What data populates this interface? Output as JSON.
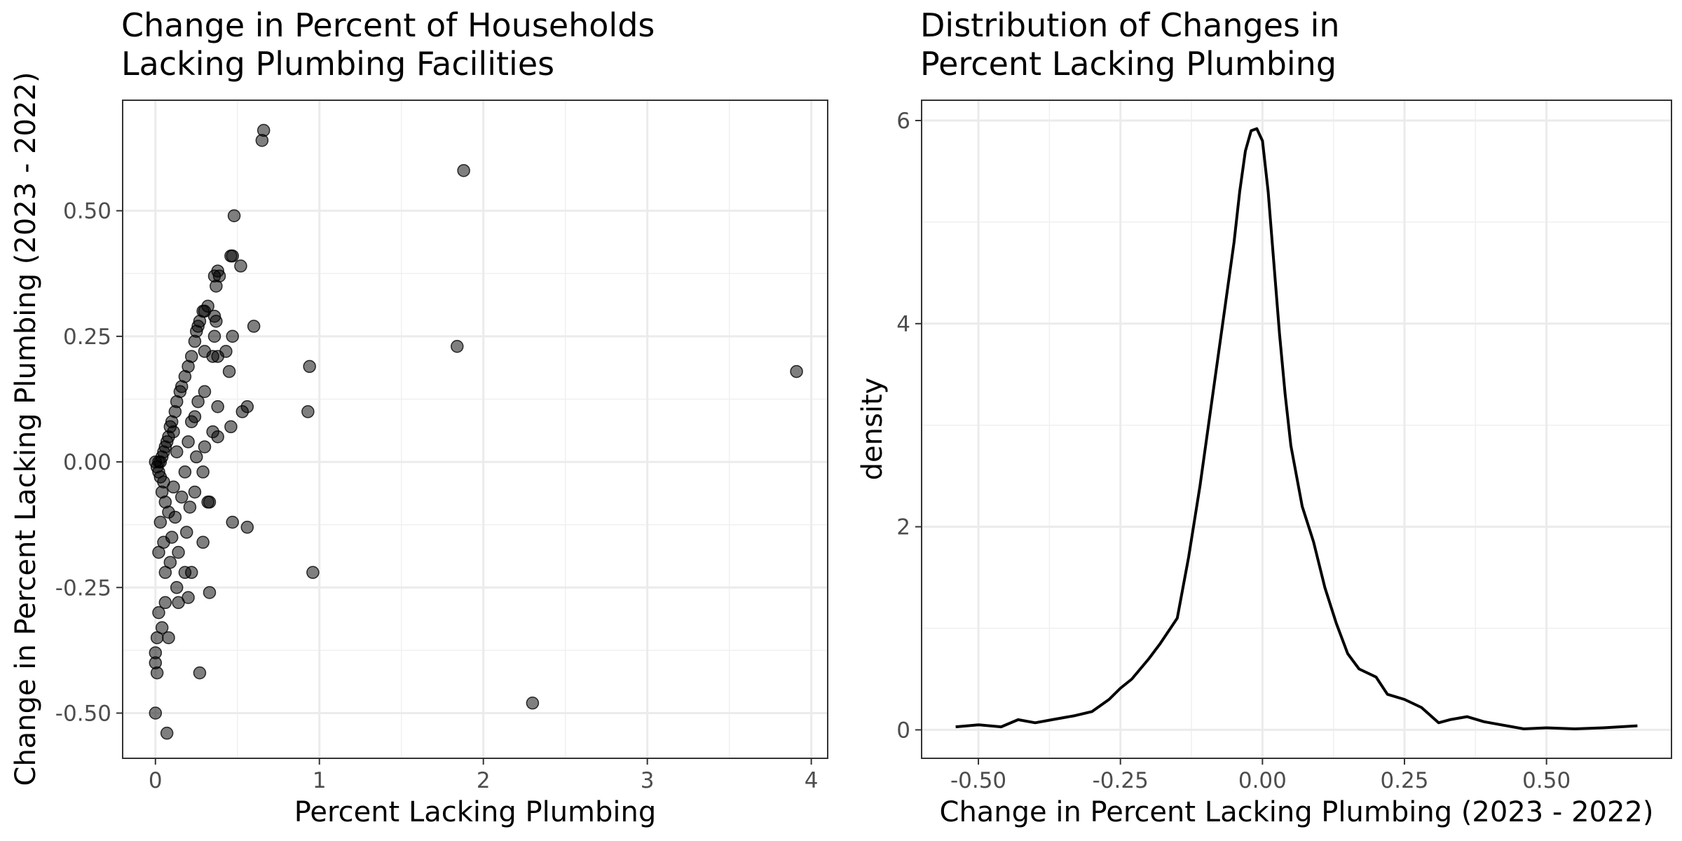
{
  "chart_data": [
    {
      "type": "scatter",
      "title": [
        "Change in Percent of Households",
        "Lacking Plumbing Facilities"
      ],
      "xlabel": "Percent Lacking Plumbing",
      "ylabel": "Change in Percent Lacking Plumbing (2023 - 2022)",
      "xlim": [
        -0.2,
        4.1
      ],
      "ylim": [
        -0.59,
        0.72
      ],
      "grid": true,
      "x_ticks": [
        0,
        1,
        2,
        3,
        4
      ],
      "x_tick_labels": [
        "0",
        "1",
        "2",
        "3",
        "4"
      ],
      "y_ticks": [
        -0.5,
        -0.25,
        0,
        0.25,
        0.5
      ],
      "y_tick_labels": [
        "-0.50",
        "-0.25",
        "0.00",
        "0.25",
        "0.50"
      ],
      "point_color": "#000000",
      "point_opacity": 0.5,
      "points": [
        [
          0.66,
          0.66
        ],
        [
          0.65,
          0.64
        ],
        [
          1.88,
          0.58
        ],
        [
          0.48,
          0.49
        ],
        [
          0.46,
          0.41
        ],
        [
          0.47,
          0.41
        ],
        [
          0.52,
          0.39
        ],
        [
          0.38,
          0.38
        ],
        [
          0.36,
          0.37
        ],
        [
          0.39,
          0.37
        ],
        [
          0.37,
          0.35
        ],
        [
          0.3,
          0.3
        ],
        [
          0.32,
          0.31
        ],
        [
          0.29,
          0.3
        ],
        [
          0.27,
          0.28
        ],
        [
          0.6,
          0.27
        ],
        [
          0.36,
          0.29
        ],
        [
          0.37,
          0.28
        ],
        [
          0.26,
          0.27
        ],
        [
          0.25,
          0.26
        ],
        [
          0.47,
          0.25
        ],
        [
          0.36,
          0.25
        ],
        [
          0.24,
          0.24
        ],
        [
          1.84,
          0.23
        ],
        [
          0.43,
          0.22
        ],
        [
          0.3,
          0.22
        ],
        [
          0.38,
          0.21
        ],
        [
          0.35,
          0.21
        ],
        [
          0.22,
          0.21
        ],
        [
          0.2,
          0.19
        ],
        [
          0.94,
          0.19
        ],
        [
          3.91,
          0.18
        ],
        [
          0.45,
          0.18
        ],
        [
          0.18,
          0.17
        ],
        [
          0.16,
          0.15
        ],
        [
          0.15,
          0.14
        ],
        [
          0.3,
          0.14
        ],
        [
          0.26,
          0.12
        ],
        [
          0.38,
          0.11
        ],
        [
          0.56,
          0.11
        ],
        [
          0.93,
          0.1
        ],
        [
          0.53,
          0.1
        ],
        [
          0.13,
          0.12
        ],
        [
          0.12,
          0.1
        ],
        [
          0.24,
          0.09
        ],
        [
          0.22,
          0.08
        ],
        [
          0.46,
          0.07
        ],
        [
          0.35,
          0.06
        ],
        [
          0.1,
          0.08
        ],
        [
          0.09,
          0.07
        ],
        [
          0.11,
          0.06
        ],
        [
          0.38,
          0.05
        ],
        [
          0.2,
          0.04
        ],
        [
          0.08,
          0.05
        ],
        [
          0.07,
          0.04
        ],
        [
          0.3,
          0.03
        ],
        [
          0.06,
          0.03
        ],
        [
          0.13,
          0.02
        ],
        [
          0.25,
          0.01
        ],
        [
          0.05,
          0.02
        ],
        [
          0.04,
          0.01
        ],
        [
          0.03,
          0.0
        ],
        [
          0.02,
          0.0
        ],
        [
          0.01,
          -0.01
        ],
        [
          0.0,
          0.0
        ],
        [
          0.02,
          -0.02
        ],
        [
          0.18,
          -0.02
        ],
        [
          0.29,
          -0.02
        ],
        [
          0.03,
          -0.03
        ],
        [
          0.05,
          -0.04
        ],
        [
          0.11,
          -0.05
        ],
        [
          0.24,
          -0.06
        ],
        [
          0.04,
          -0.06
        ],
        [
          0.16,
          -0.07
        ],
        [
          0.32,
          -0.08
        ],
        [
          0.33,
          -0.08
        ],
        [
          0.06,
          -0.08
        ],
        [
          0.21,
          -0.09
        ],
        [
          0.08,
          -0.1
        ],
        [
          0.12,
          -0.11
        ],
        [
          0.47,
          -0.12
        ],
        [
          0.56,
          -0.13
        ],
        [
          0.03,
          -0.12
        ],
        [
          0.19,
          -0.14
        ],
        [
          0.1,
          -0.15
        ],
        [
          0.29,
          -0.16
        ],
        [
          0.05,
          -0.16
        ],
        [
          0.14,
          -0.18
        ],
        [
          0.02,
          -0.18
        ],
        [
          0.09,
          -0.2
        ],
        [
          0.96,
          -0.22
        ],
        [
          0.22,
          -0.22
        ],
        [
          0.18,
          -0.22
        ],
        [
          0.06,
          -0.22
        ],
        [
          0.13,
          -0.25
        ],
        [
          0.33,
          -0.26
        ],
        [
          0.2,
          -0.27
        ],
        [
          0.14,
          -0.28
        ],
        [
          0.06,
          -0.28
        ],
        [
          0.02,
          -0.3
        ],
        [
          0.04,
          -0.33
        ],
        [
          0.01,
          -0.35
        ],
        [
          0.08,
          -0.35
        ],
        [
          0.0,
          -0.38
        ],
        [
          0.0,
          -0.4
        ],
        [
          0.01,
          -0.42
        ],
        [
          0.27,
          -0.42
        ],
        [
          2.3,
          -0.48
        ],
        [
          0.0,
          -0.5
        ],
        [
          0.07,
          -0.54
        ]
      ]
    },
    {
      "type": "line",
      "title": [
        "Distribution of Changes in",
        "Percent Lacking Plumbing"
      ],
      "xlabel": "Change in Percent Lacking Plumbing (2023 - 2022)",
      "ylabel": "density",
      "xlim": [
        -0.6,
        0.72
      ],
      "ylim": [
        -0.28,
        6.2
      ],
      "grid": true,
      "x_ticks": [
        -0.5,
        -0.25,
        0,
        0.25,
        0.5
      ],
      "x_tick_labels": [
        "-0.50",
        "-0.25",
        "0.00",
        "0.25",
        "0.50"
      ],
      "y_ticks": [
        0,
        2,
        4,
        6
      ],
      "y_tick_labels": [
        "0",
        "2",
        "4",
        "6"
      ],
      "line_color": "#000000",
      "x": [
        -0.54,
        -0.5,
        -0.46,
        -0.43,
        -0.4,
        -0.37,
        -0.33,
        -0.3,
        -0.27,
        -0.25,
        -0.23,
        -0.2,
        -0.18,
        -0.15,
        -0.13,
        -0.11,
        -0.09,
        -0.07,
        -0.05,
        -0.04,
        -0.03,
        -0.02,
        -0.01,
        0.0,
        0.01,
        0.02,
        0.03,
        0.04,
        0.05,
        0.07,
        0.09,
        0.11,
        0.13,
        0.15,
        0.17,
        0.2,
        0.22,
        0.25,
        0.28,
        0.31,
        0.33,
        0.36,
        0.39,
        0.42,
        0.46,
        0.5,
        0.55,
        0.6,
        0.66
      ],
      "y": [
        0.03,
        0.05,
        0.03,
        0.1,
        0.07,
        0.1,
        0.14,
        0.18,
        0.3,
        0.41,
        0.5,
        0.7,
        0.85,
        1.1,
        1.7,
        2.4,
        3.2,
        4.0,
        4.8,
        5.3,
        5.7,
        5.9,
        5.92,
        5.8,
        5.3,
        4.6,
        3.9,
        3.3,
        2.8,
        2.2,
        1.85,
        1.4,
        1.05,
        0.75,
        0.6,
        0.52,
        0.35,
        0.3,
        0.22,
        0.07,
        0.1,
        0.13,
        0.08,
        0.05,
        0.01,
        0.02,
        0.01,
        0.02,
        0.04
      ]
    }
  ]
}
